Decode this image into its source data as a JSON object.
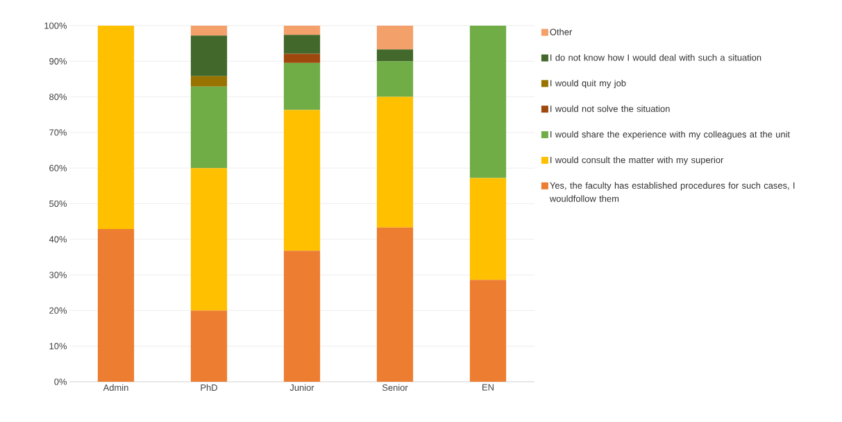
{
  "chart_data": {
    "type": "bar",
    "stacked": true,
    "categories": [
      "Admin",
      "PhD",
      "Junior",
      "Senior",
      "EN"
    ],
    "series": [
      {
        "name": "Yes, the faculty has established procedures for such cases, I wouldfollow them",
        "color": "#ed7d31",
        "values": [
          42.9,
          20.0,
          36.8,
          43.3,
          28.6
        ]
      },
      {
        "name": "I would consult the matter with my superior",
        "color": "#ffc000",
        "values": [
          57.1,
          40.0,
          39.5,
          36.7,
          28.6
        ]
      },
      {
        "name": "I would share the experience with my colleagues at the unit",
        "color": "#70ad47",
        "values": [
          0,
          22.9,
          13.2,
          10.0,
          42.8
        ]
      },
      {
        "name": "I would not solve the situation",
        "color": "#9e480e",
        "values": [
          0,
          0,
          2.6,
          0,
          0
        ]
      },
      {
        "name": "I would quit my job",
        "color": "#997300",
        "values": [
          0,
          2.9,
          0,
          0,
          0
        ]
      },
      {
        "name": "I do not know how I would deal with such a situation",
        "color": "#43682b",
        "values": [
          0,
          11.4,
          5.3,
          3.3,
          0
        ]
      },
      {
        "name": "Other",
        "color": "#f4a06a",
        "values": [
          0,
          2.8,
          2.6,
          6.7,
          0
        ]
      }
    ],
    "ylim": [
      0,
      100
    ],
    "yticks": [
      {
        "value": 0,
        "label": "0%"
      },
      {
        "value": 10,
        "label": "10%"
      },
      {
        "value": 20,
        "label": "20%"
      },
      {
        "value": 30,
        "label": "30%"
      },
      {
        "value": 40,
        "label": "40%"
      },
      {
        "value": 50,
        "label": "50%"
      },
      {
        "value": 60,
        "label": "60%"
      },
      {
        "value": 70,
        "label": "70%"
      },
      {
        "value": 80,
        "label": "80%"
      },
      {
        "value": 90,
        "label": "90%"
      },
      {
        "value": 100,
        "label": "100%"
      }
    ],
    "grid": "y",
    "legend": "right"
  }
}
